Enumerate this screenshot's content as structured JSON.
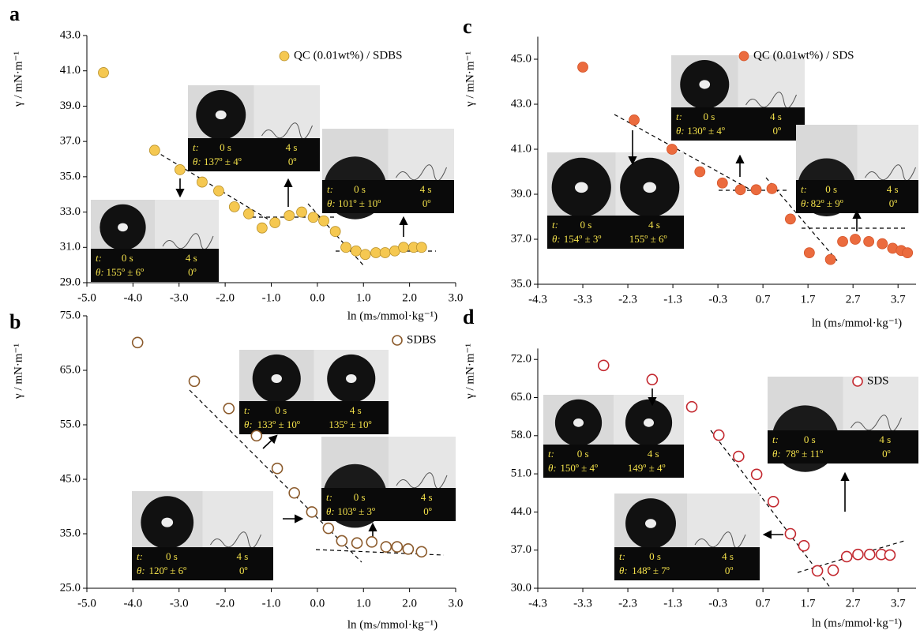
{
  "chart_data": [
    {
      "type": "scatter",
      "panel_label": "a",
      "x_label": "ln (mₛ/mmol·kg⁻¹)",
      "y_label": "γ / mN·m⁻¹",
      "series": [
        {
          "name": "QC (0.01wt%) / SDBS",
          "color": "#f5c851",
          "filled": true,
          "x": [
            -4.64,
            -3.53,
            -2.98,
            -2.5,
            -2.14,
            -1.8,
            -1.49,
            -1.2,
            -0.92,
            -0.61,
            -0.34,
            -0.09,
            0.14,
            0.39,
            0.62,
            0.84,
            1.04,
            1.27,
            1.47,
            1.68,
            1.87,
            2.09,
            2.26
          ],
          "values": [
            40.9,
            36.5,
            35.4,
            34.7,
            34.2,
            33.3,
            32.9,
            32.1,
            32.4,
            32.8,
            33.0,
            32.7,
            32.5,
            31.9,
            31.0,
            30.8,
            30.6,
            30.7,
            30.7,
            30.8,
            31.0,
            31.0,
            31.0
          ]
        }
      ],
      "xlim": [
        -5,
        3
      ],
      "xticks": [
        {
          "value": -5,
          "label": "-5.0"
        },
        {
          "value": -4,
          "label": "-4.0"
        },
        {
          "value": -3,
          "label": "-3.0"
        },
        {
          "value": -2,
          "label": "-2.0"
        },
        {
          "value": -1,
          "label": "-1.0"
        },
        {
          "value": 0,
          "label": "0.0"
        },
        {
          "value": 1,
          "label": "1.0"
        },
        {
          "value": 2,
          "label": "2.0"
        },
        {
          "value": 3,
          "label": "3.0"
        }
      ],
      "ylim": [
        29,
        43
      ],
      "yticks": [
        {
          "value": 29,
          "label": "29.0"
        },
        {
          "value": 31,
          "label": "31.0"
        },
        {
          "value": 33,
          "label": "33.0"
        },
        {
          "value": 35,
          "label": "35.0"
        },
        {
          "value": 37,
          "label": "37.0"
        },
        {
          "value": 39,
          "label": "39.0"
        },
        {
          "value": 41,
          "label": "41.0"
        },
        {
          "value": 43,
          "label": "43.0"
        }
      ],
      "insets": [
        {
          "labels": [
            "t:",
            "0 s",
            "4 s",
            "θ:",
            "155º ± 6º",
            "0º"
          ]
        },
        {
          "labels": [
            "t:",
            "0 s",
            "4 s",
            "θ:",
            "137º ± 4º",
            "0º"
          ]
        },
        {
          "labels": [
            "t:",
            "0 s",
            "4 s",
            "θ:",
            "101º ± 10º",
            "0º"
          ]
        }
      ]
    },
    {
      "type": "scatter",
      "panel_label": "b",
      "x_label": "ln (mₛ/mmol·kg⁻¹)",
      "y_label": "γ / mN·m⁻¹",
      "series": [
        {
          "name": "SDBS",
          "color": "#8b5a2b",
          "filled": false,
          "x": [
            -3.9,
            -2.67,
            -1.92,
            -1.32,
            -0.87,
            -0.5,
            -0.12,
            0.24,
            0.53,
            0.86,
            1.18,
            1.49,
            1.73,
            1.97,
            2.26
          ],
          "values": [
            70.1,
            63.0,
            58.0,
            53.0,
            47.0,
            42.5,
            39.0,
            36.0,
            33.7,
            33.3,
            33.5,
            32.6,
            32.6,
            32.2,
            31.7
          ]
        }
      ],
      "xlim": [
        -5,
        3
      ],
      "xticks": [
        {
          "value": -5,
          "label": "-5.0"
        },
        {
          "value": -4,
          "label": "-4.0"
        },
        {
          "value": -3,
          "label": "-3.0"
        },
        {
          "value": -2,
          "label": "-2.0"
        },
        {
          "value": -1,
          "label": "-1.0"
        },
        {
          "value": 0,
          "label": "0.0"
        },
        {
          "value": 1,
          "label": "1.0"
        },
        {
          "value": 2,
          "label": "2.0"
        },
        {
          "value": 3,
          "label": "3.0"
        }
      ],
      "ylim": [
        25,
        75
      ],
      "yticks": [
        {
          "value": 25,
          "label": "25.0"
        },
        {
          "value": 35,
          "label": "35.0"
        },
        {
          "value": 45,
          "label": "45.0"
        },
        {
          "value": 55,
          "label": "55.0"
        },
        {
          "value": 65,
          "label": "65.0"
        },
        {
          "value": 75,
          "label": "75.0"
        }
      ],
      "insets": [
        {
          "labels": [
            "t:",
            "0 s",
            "4 s",
            "θ:",
            "133º ± 10º",
            "135º ± 10º"
          ]
        },
        {
          "labels": [
            "t:",
            "0 s",
            "4 s",
            "θ:",
            "103º ± 3º",
            "0º"
          ]
        },
        {
          "labels": [
            "t:",
            "0 s",
            "4 s",
            "θ:",
            "120º ± 6º",
            "0º"
          ]
        }
      ]
    },
    {
      "type": "scatter",
      "panel_label": "c",
      "x_label": "ln (mₛ/mmol·kg⁻¹)",
      "y_label": "γ / mN·m⁻¹",
      "series": [
        {
          "name": "QC (0.01wt%) / SDS",
          "color": "#eb6b3e",
          "filled": true,
          "x": [
            -3.3,
            -2.16,
            -1.32,
            -0.7,
            -0.2,
            0.2,
            0.55,
            0.9,
            1.31,
            1.73,
            2.2,
            2.47,
            2.75,
            3.05,
            3.35,
            3.58,
            3.77,
            3.91
          ],
          "values": [
            44.65,
            42.3,
            41.0,
            40.0,
            39.5,
            39.2,
            39.2,
            39.25,
            37.9,
            36.4,
            36.1,
            36.9,
            37.0,
            36.9,
            36.8,
            36.6,
            36.5,
            36.4
          ]
        }
      ],
      "xlim": [
        -4.3,
        4.1
      ],
      "xticks": [
        -4.3,
        -3.3,
        -2.3,
        -1.3,
        -0.3,
        0.7,
        1.7,
        2.7,
        3.7
      ],
      "ylim": [
        35,
        46
      ],
      "yticks": [
        {
          "value": 35,
          "label": "35.0"
        },
        {
          "value": 37,
          "label": "37.0"
        },
        {
          "value": 39,
          "label": "39.0"
        },
        {
          "value": 41,
          "label": "41.0"
        },
        {
          "value": 43,
          "label": "43.0"
        },
        {
          "value": 45,
          "label": "45.0"
        }
      ],
      "insets": [
        {
          "labels": [
            "t:",
            "0 s",
            "4 s",
            "θ:",
            "154º ± 3º",
            "155º ± 6º"
          ]
        },
        {
          "labels": [
            "t:",
            "0 s",
            "4 s",
            "θ:",
            "130º ± 4º",
            "0º"
          ]
        },
        {
          "labels": [
            "t:",
            "0 s",
            "4 s",
            "θ:",
            "82º ± 9º",
            "0º"
          ]
        }
      ]
    },
    {
      "type": "scatter",
      "panel_label": "d",
      "x_label": "ln (mₛ/mmol·kg⁻¹)",
      "y_label": "γ / mN·m⁻¹",
      "series": [
        {
          "name": "SDS",
          "color": "#c3282f",
          "filled": false,
          "x": [
            -2.84,
            -1.76,
            -0.88,
            -0.28,
            0.16,
            0.56,
            0.93,
            1.31,
            1.61,
            1.91,
            2.26,
            2.56,
            2.81,
            3.07,
            3.33,
            3.52
          ],
          "values": [
            70.9,
            68.3,
            63.3,
            58.1,
            54.2,
            50.9,
            45.9,
            40.0,
            37.8,
            33.2,
            33.3,
            35.8,
            36.2,
            36.2,
            36.2,
            36.1
          ]
        }
      ],
      "xlim": [
        -4.3,
        4.1
      ],
      "xticks": [
        -4.3,
        -3.3,
        -2.3,
        -1.3,
        -0.3,
        0.7,
        1.7,
        2.7,
        3.7
      ],
      "ylim": [
        30,
        74
      ],
      "yticks": [
        {
          "value": 30,
          "label": "30.0"
        },
        {
          "value": 37,
          "label": "37.0"
        },
        {
          "value": 44,
          "label": "44.0"
        },
        {
          "value": 51,
          "label": "51.0"
        },
        {
          "value": 58,
          "label": "58.0"
        },
        {
          "value": 65,
          "label": "65.0"
        },
        {
          "value": 72,
          "label": "72.0"
        }
      ],
      "insets": [
        {
          "labels": [
            "t:",
            "0 s",
            "4 s",
            "θ:",
            "150º ± 4º",
            "149º ± 4º"
          ]
        },
        {
          "labels": [
            "t:",
            "0 s",
            "4 s",
            "θ:",
            "78º ± 11º",
            "0º"
          ]
        },
        {
          "labels": [
            "t:",
            "0 s",
            "4 s",
            "θ:",
            "148º ± 7º",
            "0º"
          ]
        }
      ]
    }
  ]
}
